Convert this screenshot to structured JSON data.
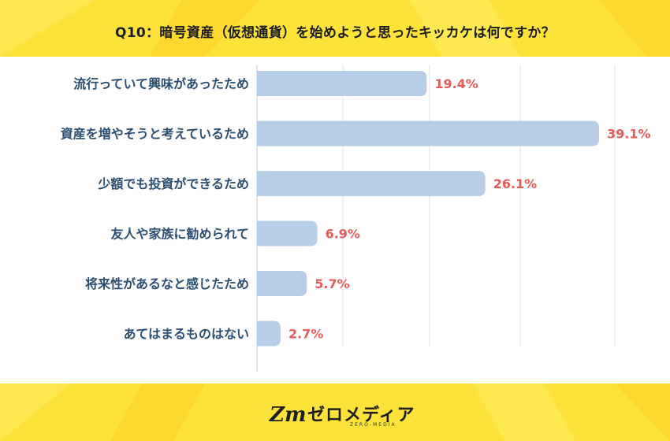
{
  "title": "Q10：暗号資産（仮想通貨）を始めようと思ったキッカケは何ですか？",
  "chart_data": {
    "type": "bar",
    "orientation": "horizontal",
    "title": "Q10：暗号資産（仮想通貨）を始めようと思ったキッカケは何ですか？",
    "categories": [
      "流行っていて興味があったため",
      "資産を増やそうと考えているため",
      "少額でも投資ができるため",
      "友人や家族に勧められて",
      "将来性があるなと感じたため",
      "あてはまるものはない"
    ],
    "values": [
      19.4,
      39.1,
      26.1,
      6.9,
      5.7,
      2.7
    ],
    "value_labels": [
      "19.4%",
      "39.1%",
      "26.1%",
      "6.9%",
      "5.7%",
      "2.7%"
    ],
    "xlim": [
      0,
      40
    ],
    "unit": "%",
    "colors": {
      "bar": "#b8cee6",
      "value": "#e85a5a",
      "label": "#2a4f72",
      "grid": "#dde3ea"
    }
  },
  "footer": {
    "logo_text": "ゼロメディア",
    "logo_sub": "ZERO-MEDIA",
    "logo_mark": "Zm"
  }
}
